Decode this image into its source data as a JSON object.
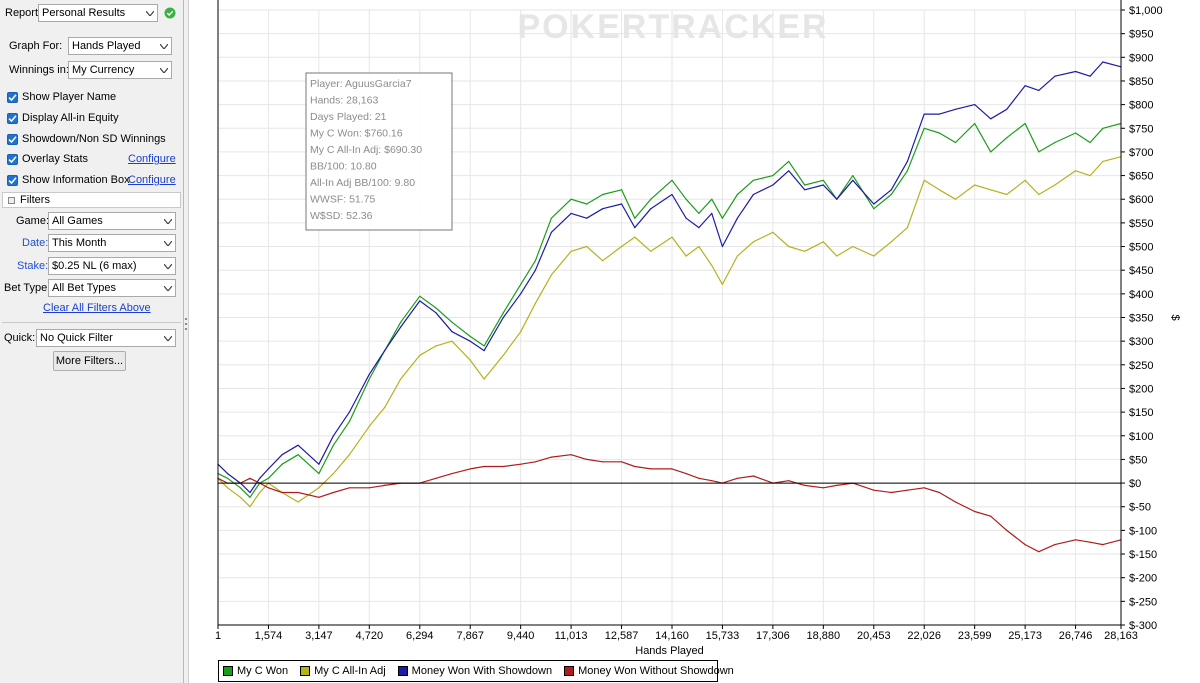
{
  "sidebar": {
    "report_label": "Report:",
    "report_value": "Personal Results",
    "graph_for_label": "Graph For:",
    "graph_for_value": "Hands Played",
    "winnings_in_label": "Winnings in:",
    "winnings_in_value": "My Currency",
    "checkboxes": [
      {
        "label": "Show Player Name",
        "checked": true
      },
      {
        "label": "Display All-in Equity",
        "checked": true
      },
      {
        "label": "Showdown/Non SD Winnings",
        "checked": true
      },
      {
        "label": "Overlay Stats",
        "checked": true
      },
      {
        "label": "Show Information Box",
        "checked": true
      }
    ],
    "configure_label": "Configure",
    "filters_header": "Filters",
    "game_label": "Game:",
    "game_value": "All Games",
    "date_label": "Date:",
    "date_value": "This Month",
    "stake_label": "Stake:",
    "stake_value": "$0.25 NL (6 max)",
    "bet_type_label": "Bet Type:",
    "bet_type_value": "All Bet Types",
    "clear_filters": "Clear All Filters Above",
    "quick_label": "Quick:",
    "quick_value": "No Quick Filter",
    "more_filters": "More Filters..."
  },
  "watermark": "POKERTRACKER",
  "info_box": [
    "Player: AguusGarcia7",
    "Hands: 28,163",
    "Days Played: 21",
    "My C Won: $760.16",
    "My C All-In Adj: $690.30",
    "BB/100: 10.80",
    "All-In Adj BB/100: 9.80",
    "WWSF: 51.75",
    "W$SD: 52.36"
  ],
  "chart_data": {
    "type": "line",
    "xlabel": "Hands Played",
    "ylabel": "$",
    "x_ticks": [
      "1",
      "1,574",
      "3,147",
      "4,720",
      "6,294",
      "7,867",
      "9,440",
      "11,013",
      "12,587",
      "14,160",
      "15,733",
      "17,306",
      "18,880",
      "20,453",
      "22,026",
      "23,599",
      "25,173",
      "26,746",
      "28,163"
    ],
    "x_tick_values": [
      1,
      1574,
      3147,
      4720,
      6294,
      7867,
      9440,
      11013,
      12587,
      14160,
      15733,
      17306,
      18880,
      20453,
      22026,
      23599,
      25173,
      26746,
      28163
    ],
    "y_ticks": [
      "$1,000",
      "$950",
      "$900",
      "$850",
      "$800",
      "$750",
      "$700",
      "$650",
      "$600",
      "$550",
      "$500",
      "$450",
      "$400",
      "$350",
      "$300",
      "$250",
      "$200",
      "$150",
      "$100",
      "$50",
      "$0",
      "$-50",
      "$-100",
      "$-150",
      "$-200",
      "$-250",
      "$-300"
    ],
    "xlim": [
      1,
      28163
    ],
    "ylim": [
      -300,
      1000
    ],
    "grid": true,
    "legend_position": "bottom-left",
    "series": [
      {
        "name": "My C Won",
        "color": "#1a9e1a",
        "x": [
          1,
          300,
          700,
          1000,
          1300,
          1574,
          2000,
          2500,
          3147,
          3600,
          4100,
          4720,
          5200,
          5700,
          6294,
          6800,
          7300,
          7867,
          8300,
          8900,
          9440,
          9900,
          10400,
          11013,
          11500,
          12000,
          12587,
          13000,
          13500,
          14160,
          14600,
          15000,
          15400,
          15733,
          16200,
          16700,
          17306,
          17800,
          18300,
          18880,
          19300,
          19800,
          20453,
          21000,
          21500,
          22026,
          22500,
          23000,
          23599,
          24100,
          24600,
          25173,
          25600,
          26100,
          26746,
          27200,
          27600,
          28163
        ],
        "y": [
          20,
          10,
          -10,
          -30,
          0,
          10,
          40,
          60,
          20,
          80,
          130,
          220,
          280,
          340,
          395,
          370,
          340,
          310,
          290,
          360,
          420,
          470,
          560,
          600,
          590,
          610,
          620,
          560,
          600,
          640,
          600,
          570,
          600,
          560,
          610,
          640,
          650,
          680,
          630,
          640,
          600,
          650,
          580,
          610,
          660,
          750,
          740,
          720,
          760,
          700,
          730,
          760,
          700,
          720,
          740,
          720,
          750,
          760
        ]
      },
      {
        "name": "My C All-In Adj",
        "color": "#b5b21c",
        "x": [
          1,
          300,
          700,
          1000,
          1300,
          1574,
          2000,
          2500,
          3147,
          3600,
          4100,
          4720,
          5200,
          5700,
          6294,
          6800,
          7300,
          7867,
          8300,
          8900,
          9440,
          9900,
          10400,
          11013,
          11500,
          12000,
          12587,
          13000,
          13500,
          14160,
          14600,
          15000,
          15400,
          15733,
          16200,
          16700,
          17306,
          17800,
          18300,
          18880,
          19300,
          19800,
          20453,
          21000,
          21500,
          22026,
          22500,
          23000,
          23599,
          24100,
          24600,
          25173,
          25600,
          26100,
          26746,
          27200,
          27600,
          28163
        ],
        "y": [
          10,
          -10,
          -30,
          -50,
          -20,
          0,
          -20,
          -40,
          -10,
          20,
          60,
          120,
          160,
          220,
          270,
          290,
          300,
          260,
          220,
          270,
          320,
          380,
          440,
          490,
          500,
          470,
          500,
          520,
          490,
          520,
          480,
          500,
          460,
          420,
          480,
          510,
          530,
          500,
          490,
          510,
          480,
          500,
          480,
          510,
          540,
          640,
          620,
          600,
          630,
          620,
          610,
          640,
          610,
          630,
          660,
          650,
          680,
          690
        ]
      },
      {
        "name": "Money Won With Showdown",
        "color": "#1c1ca8",
        "x": [
          1,
          300,
          700,
          1000,
          1300,
          1574,
          2000,
          2500,
          3147,
          3600,
          4100,
          4720,
          5200,
          5700,
          6294,
          6800,
          7300,
          7867,
          8300,
          8900,
          9440,
          9900,
          10400,
          11013,
          11500,
          12000,
          12587,
          13000,
          13500,
          14160,
          14600,
          15000,
          15400,
          15733,
          16200,
          16700,
          17306,
          17800,
          18300,
          18880,
          19300,
          19800,
          20453,
          21000,
          21500,
          22026,
          22500,
          23000,
          23599,
          24100,
          24600,
          25173,
          25600,
          26100,
          26746,
          27200,
          27600,
          28163
        ],
        "y": [
          40,
          20,
          0,
          -20,
          10,
          30,
          60,
          80,
          40,
          100,
          150,
          230,
          280,
          330,
          385,
          360,
          320,
          300,
          280,
          350,
          400,
          450,
          530,
          570,
          560,
          580,
          590,
          540,
          580,
          610,
          560,
          540,
          570,
          500,
          560,
          610,
          630,
          660,
          620,
          630,
          600,
          640,
          590,
          620,
          680,
          780,
          780,
          790,
          800,
          770,
          790,
          840,
          830,
          860,
          870,
          860,
          890,
          880
        ]
      },
      {
        "name": "Money Won Without Showdown",
        "color": "#b01c1c",
        "x": [
          1,
          300,
          700,
          1000,
          1300,
          1574,
          2000,
          2500,
          3147,
          3600,
          4100,
          4720,
          5200,
          5700,
          6294,
          6800,
          7300,
          7867,
          8300,
          8900,
          9440,
          9900,
          10400,
          11013,
          11500,
          12000,
          12587,
          13000,
          13500,
          14160,
          14600,
          15000,
          15400,
          15733,
          16200,
          16700,
          17306,
          17800,
          18300,
          18880,
          19300,
          19800,
          20453,
          21000,
          21500,
          22026,
          22500,
          23000,
          23599,
          24100,
          24600,
          25173,
          25600,
          26100,
          26746,
          27200,
          27600,
          28163
        ],
        "y": [
          10,
          0,
          0,
          10,
          0,
          -10,
          -20,
          -20,
          -30,
          -20,
          -10,
          -10,
          -5,
          0,
          0,
          10,
          20,
          30,
          35,
          35,
          40,
          45,
          55,
          60,
          50,
          45,
          45,
          35,
          30,
          30,
          20,
          10,
          5,
          0,
          10,
          15,
          0,
          5,
          -5,
          -10,
          -5,
          0,
          -15,
          -20,
          -15,
          -10,
          -20,
          -40,
          -60,
          -70,
          -100,
          -130,
          -145,
          -130,
          -120,
          -125,
          -130,
          -120
        ]
      }
    ]
  }
}
